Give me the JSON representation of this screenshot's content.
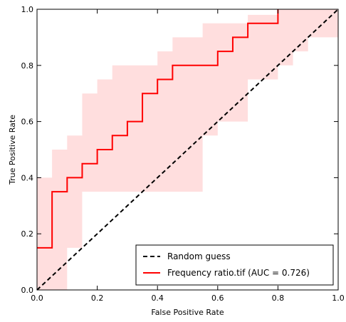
{
  "chart_data": {
    "type": "line",
    "title": "",
    "xlabel": "False Positive Rate",
    "ylabel": "True Positive Rate",
    "xlim": [
      0.0,
      1.0
    ],
    "ylim": [
      0.0,
      1.0
    ],
    "xticks": [
      "0.0",
      "0.2",
      "0.4",
      "0.6",
      "0.8",
      "1.0"
    ],
    "yticks": [
      "0.0",
      "0.2",
      "0.4",
      "0.6",
      "0.8",
      "1.0"
    ],
    "grid": false,
    "legend_position": "bottom-right",
    "series": [
      {
        "name": "Random guess",
        "style": "dashed",
        "color": "#000000",
        "x": [
          0.0,
          1.0
        ],
        "y": [
          0.0,
          1.0
        ]
      },
      {
        "name": "Frequency ratio.tif (AUC = 0.726)",
        "style": "step",
        "color": "#ff0000",
        "x": [
          0.0,
          0.05,
          0.05,
          0.1,
          0.1,
          0.15,
          0.15,
          0.2,
          0.2,
          0.25,
          0.25,
          0.3,
          0.3,
          0.35,
          0.35,
          0.4,
          0.4,
          0.45,
          0.45,
          0.6,
          0.6,
          0.65,
          0.65,
          0.7,
          0.7,
          0.8,
          0.8
        ],
        "y": [
          0.15,
          0.15,
          0.35,
          0.35,
          0.4,
          0.4,
          0.45,
          0.45,
          0.5,
          0.5,
          0.55,
          0.55,
          0.6,
          0.6,
          0.7,
          0.7,
          0.75,
          0.75,
          0.8,
          0.8,
          0.85,
          0.85,
          0.9,
          0.9,
          0.95,
          0.95,
          1.0
        ]
      }
    ],
    "confidence_band": {
      "color": "#ffdede",
      "upper": {
        "x": [
          0.0,
          0.05,
          0.05,
          0.1,
          0.1,
          0.15,
          0.15,
          0.2,
          0.2,
          0.25,
          0.25,
          0.35,
          0.35,
          0.4,
          0.4,
          0.45,
          0.45,
          0.55,
          0.55,
          0.65,
          0.65,
          0.7,
          0.7,
          0.8,
          0.8,
          0.85,
          0.85,
          1.0
        ],
        "y": [
          0.4,
          0.4,
          0.5,
          0.5,
          0.55,
          0.55,
          0.7,
          0.7,
          0.75,
          0.75,
          0.8,
          0.8,
          0.8,
          0.8,
          0.85,
          0.85,
          0.9,
          0.9,
          0.95,
          0.95,
          0.95,
          0.95,
          0.98,
          0.98,
          1.0,
          1.0,
          1.0,
          1.0
        ]
      },
      "lower": {
        "x": [
          0.0,
          0.1,
          0.1,
          0.15,
          0.15,
          0.45,
          0.45,
          0.55,
          0.55,
          0.6,
          0.6,
          0.7,
          0.7,
          0.8,
          0.8,
          0.85,
          0.85,
          0.9,
          0.9,
          1.0
        ],
        "y": [
          0.0,
          0.0,
          0.15,
          0.15,
          0.35,
          0.35,
          0.35,
          0.35,
          0.55,
          0.55,
          0.6,
          0.6,
          0.75,
          0.75,
          0.8,
          0.8,
          0.85,
          0.85,
          0.9,
          0.9
        ]
      }
    }
  }
}
